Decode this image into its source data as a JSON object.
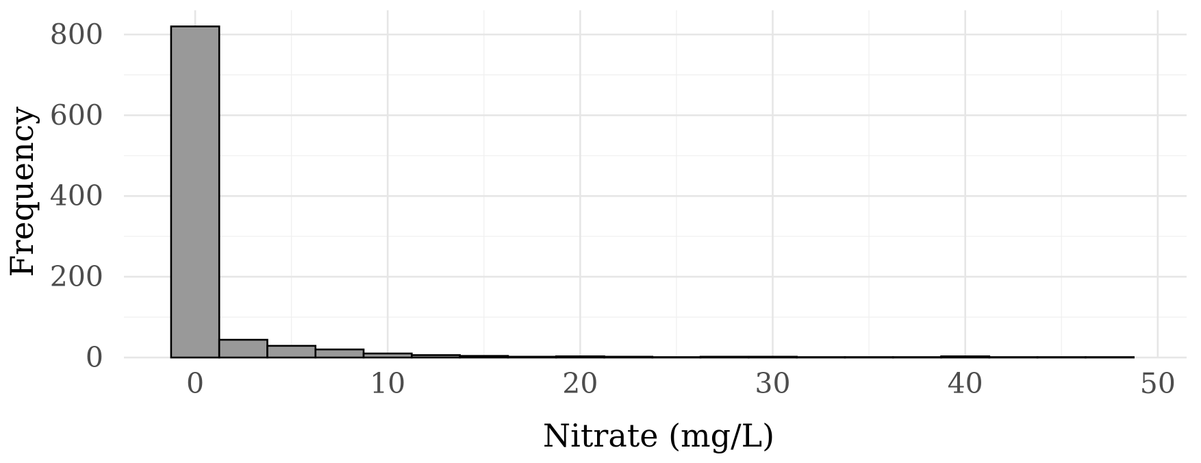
{
  "chart_data": {
    "type": "bar",
    "subtype": "histogram",
    "title": "",
    "xlabel": "Nitrate (mg/L)",
    "ylabel": "Frequency",
    "xlim": [
      -3.7,
      51.5
    ],
    "ylim": [
      0,
      860
    ],
    "x_ticks": [
      0,
      10,
      20,
      30,
      40,
      50
    ],
    "y_ticks": [
      0,
      200,
      400,
      600,
      800
    ],
    "x_tick_labels": [
      "0",
      "10",
      "20",
      "30",
      "40",
      "50"
    ],
    "y_tick_labels": [
      "0",
      "200",
      "400",
      "600",
      "800"
    ],
    "grid": true,
    "bin_width": 2.5,
    "bins": [
      {
        "x0": -1.25,
        "x1": 1.25,
        "count": 820
      },
      {
        "x0": 1.25,
        "x1": 3.75,
        "count": 44
      },
      {
        "x0": 3.75,
        "x1": 6.25,
        "count": 29
      },
      {
        "x0": 6.25,
        "x1": 8.75,
        "count": 20
      },
      {
        "x0": 8.75,
        "x1": 11.25,
        "count": 10
      },
      {
        "x0": 11.25,
        "x1": 13.75,
        "count": 6
      },
      {
        "x0": 13.75,
        "x1": 16.25,
        "count": 4
      },
      {
        "x0": 16.25,
        "x1": 18.75,
        "count": 2
      },
      {
        "x0": 18.75,
        "x1": 21.25,
        "count": 3
      },
      {
        "x0": 21.25,
        "x1": 23.75,
        "count": 2
      },
      {
        "x0": 23.75,
        "x1": 26.25,
        "count": 1
      },
      {
        "x0": 26.25,
        "x1": 28.75,
        "count": 2
      },
      {
        "x0": 28.75,
        "x1": 31.25,
        "count": 2
      },
      {
        "x0": 31.25,
        "x1": 33.75,
        "count": 1
      },
      {
        "x0": 33.75,
        "x1": 36.25,
        "count": 1
      },
      {
        "x0": 36.25,
        "x1": 38.75,
        "count": 1
      },
      {
        "x0": 38.75,
        "x1": 41.25,
        "count": 3
      },
      {
        "x0": 41.25,
        "x1": 43.75,
        "count": 1
      },
      {
        "x0": 43.75,
        "x1": 46.25,
        "count": 1
      },
      {
        "x0": 46.25,
        "x1": 48.75,
        "count": 1
      }
    ],
    "colors": {
      "bar_fill": "#999999",
      "bar_stroke": "#000000",
      "grid": "#e6e6e6",
      "tick_text": "#4d4d4d"
    }
  }
}
